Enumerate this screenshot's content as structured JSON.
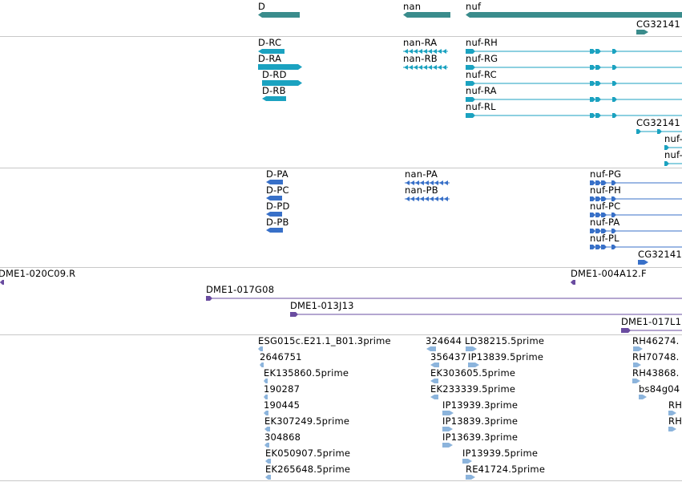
{
  "colors": {
    "gene": "#3a8c8c",
    "transcript": "#1ba2c0",
    "protein": "#3870c8",
    "clone": "#6a4ca0",
    "est": "#8cb4dc",
    "separator": "#c8c8c8"
  },
  "tracks": {
    "genes": {
      "items": [
        {
          "label": "D",
          "strand": "-"
        },
        {
          "label": "nan",
          "strand": "-"
        },
        {
          "label": "nuf",
          "strand": "-"
        },
        {
          "label": "CG32141",
          "strand": "+"
        }
      ]
    },
    "transcripts": {
      "items": [
        {
          "label": "D-RC",
          "strand": "-"
        },
        {
          "label": "D-RA",
          "strand": "+"
        },
        {
          "label": "D-RD",
          "strand": "+"
        },
        {
          "label": "D-RB",
          "strand": "-"
        },
        {
          "label": "nan-RA",
          "strand": "-"
        },
        {
          "label": "nan-RB",
          "strand": "-"
        },
        {
          "label": "nuf-RH",
          "strand": "+"
        },
        {
          "label": "nuf-RG",
          "strand": "+"
        },
        {
          "label": "nuf-RC",
          "strand": "+"
        },
        {
          "label": "nuf-RA",
          "strand": "+"
        },
        {
          "label": "nuf-RL",
          "strand": "+"
        },
        {
          "label": "CG32141",
          "strand": "+"
        },
        {
          "label": "nuf-",
          "strand": "+"
        },
        {
          "label": "nuf-",
          "strand": "+"
        }
      ]
    },
    "proteins": {
      "items": [
        {
          "label": "D-PA",
          "strand": "-"
        },
        {
          "label": "D-PC",
          "strand": "-"
        },
        {
          "label": "D-PD",
          "strand": "-"
        },
        {
          "label": "D-PB",
          "strand": "-"
        },
        {
          "label": "nan-PA",
          "strand": "-"
        },
        {
          "label": "nan-PB",
          "strand": "-"
        },
        {
          "label": "nuf-PG",
          "strand": "+"
        },
        {
          "label": "nuf-PH",
          "strand": "+"
        },
        {
          "label": "nuf-PC",
          "strand": "+"
        },
        {
          "label": "nuf-PA",
          "strand": "+"
        },
        {
          "label": "nuf-PL",
          "strand": "+"
        },
        {
          "label": "CG32141",
          "strand": "+"
        }
      ]
    },
    "clones": {
      "items": [
        {
          "label": "DME1-020C09.R",
          "strand": "-"
        },
        {
          "label": "DME1-017G08",
          "strand": "+"
        },
        {
          "label": "DME1-013J13",
          "strand": "+"
        },
        {
          "label": "DME1-004A12.F",
          "strand": "-"
        },
        {
          "label": "DME1-017L1",
          "strand": "+"
        }
      ]
    },
    "ests": {
      "items": [
        {
          "label": "ESG015c.E21.1_B01.3prime"
        },
        {
          "label": "2646751"
        },
        {
          "label": "EK135860.5prime"
        },
        {
          "label": "190287"
        },
        {
          "label": "190445"
        },
        {
          "label": "EK307249.5prime"
        },
        {
          "label": "304868"
        },
        {
          "label": "EK050907.5prime"
        },
        {
          "label": "EK265648.5prime"
        },
        {
          "label": "324644"
        },
        {
          "label": "LD38215.5prime"
        },
        {
          "label": "356437"
        },
        {
          "label": "IP13839.5prime"
        },
        {
          "label": "EK303605.5prime"
        },
        {
          "label": "EK233339.5prime"
        },
        {
          "label": "IP13939.3prime"
        },
        {
          "label": "IP13839.3prime"
        },
        {
          "label": "IP13639.3prime"
        },
        {
          "label": "IP13939.5prime"
        },
        {
          "label": "RE41724.5prime"
        },
        {
          "label": "RH46274."
        },
        {
          "label": "RH70748."
        },
        {
          "label": "RH43868."
        },
        {
          "label": "bs84g04"
        },
        {
          "label": "RH"
        },
        {
          "label": "RH"
        }
      ]
    }
  }
}
